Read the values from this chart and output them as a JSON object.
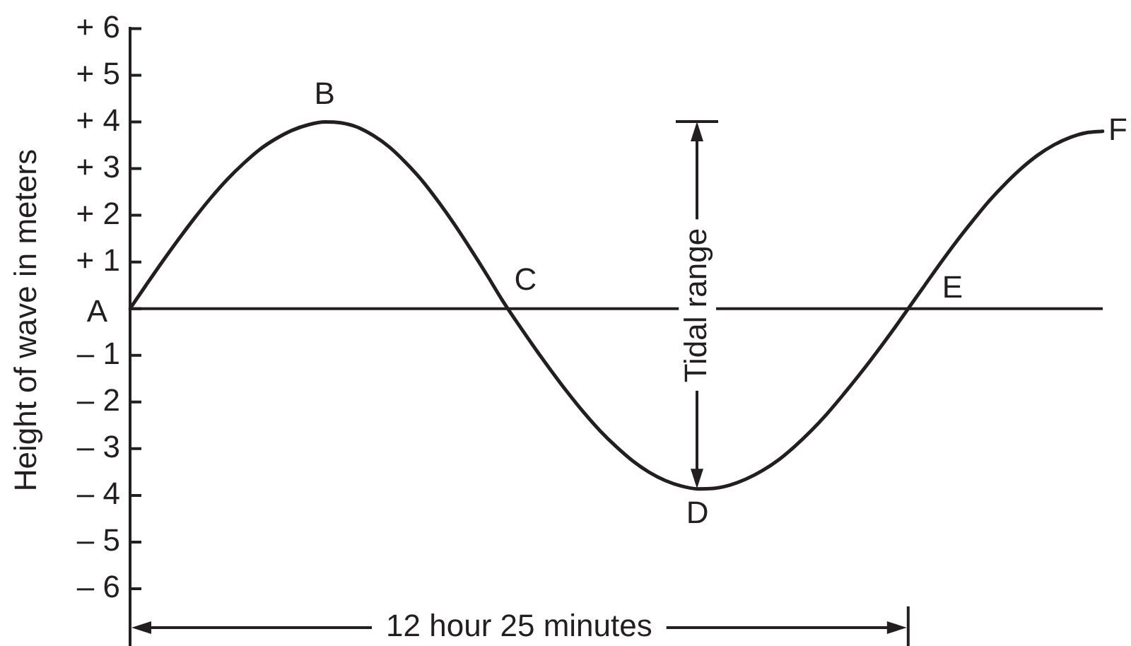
{
  "chart_data": {
    "type": "line",
    "ylabel": "Height of wave in meters",
    "categories": [
      null,
      null,
      null,
      null,
      null,
      null,
      null,
      null,
      null,
      null,
      null,
      null,
      null,
      null,
      null,
      null,
      null,
      null,
      null,
      null,
      null,
      null,
      null,
      null,
      null,
      null,
      null,
      null,
      null,
      null,
      null,
      null,
      null,
      null,
      null,
      null,
      null,
      null,
      null,
      null,
      null,
      null,
      null,
      null,
      null,
      null,
      null,
      null,
      null,
      null,
      null,
      null,
      null,
      null,
      null,
      null,
      null,
      null,
      null,
      null,
      null
    ],
    "series": [
      {
        "color": "#231f20",
        "values": [
          0,
          0.51,
          1.01,
          1.49,
          1.95,
          2.38,
          2.77,
          3.11,
          3.41,
          3.64,
          3.82,
          3.94,
          4.0,
          3.98,
          3.89,
          3.71,
          3.46,
          3.13,
          2.75,
          2.3,
          1.81,
          1.28,
          0.73,
          0.16,
          -0.36,
          -0.86,
          -1.34,
          -1.8,
          -2.23,
          -2.62,
          -2.96,
          -3.26,
          -3.5,
          -3.68,
          -3.8,
          -3.86,
          -3.85,
          -3.78,
          -3.65,
          -3.47,
          -3.24,
          -2.95,
          -2.62,
          -2.25,
          -1.84,
          -1.41,
          -0.96,
          -0.49,
          0,
          0.49,
          0.98,
          1.45,
          1.89,
          2.31,
          2.68,
          3.01,
          3.29,
          3.51,
          3.67,
          3.77,
          3.8
        ],
        "value_labels": [
          "A",
          null,
          null,
          null,
          null,
          null,
          null,
          null,
          null,
          null,
          null,
          null,
          "B",
          null,
          null,
          null,
          null,
          null,
          null,
          null,
          null,
          null,
          null,
          "C",
          null,
          null,
          null,
          null,
          null,
          null,
          null,
          null,
          null,
          null,
          null,
          "D",
          null,
          null,
          null,
          null,
          null,
          null,
          null,
          null,
          null,
          null,
          null,
          null,
          "E",
          null,
          null,
          null,
          null,
          null,
          null,
          null,
          null,
          null,
          null,
          null,
          "F"
        ]
      }
    ],
    "ylim": [
      -6.5,
      6
    ],
    "yticks": [
      {
        "value": 6,
        "label": "+ 6"
      },
      {
        "value": 5,
        "label": "+ 5"
      },
      {
        "value": 4,
        "label": "+ 4"
      },
      {
        "value": 3,
        "label": "+ 3"
      },
      {
        "value": 2,
        "label": "+ 2"
      },
      {
        "value": 1,
        "label": "+ 1"
      },
      {
        "value": 0,
        "label": null
      },
      {
        "value": -1,
        "label": "– 1"
      },
      {
        "value": -2,
        "label": "– 2"
      },
      {
        "value": -3,
        "label": "– 3"
      },
      {
        "value": -4,
        "label": "– 4"
      },
      {
        "value": -5,
        "label": "– 5"
      },
      {
        "value": -6,
        "label": "– 6"
      }
    ],
    "ref_lines": [
      {
        "axis": "y",
        "value": 0,
        "color": "#231f20"
      }
    ],
    "annotations": [
      "Tidal range",
      "12 hour 25 minutes"
    ],
    "grid": false,
    "legend": false,
    "marker": "none",
    "line_style": "solid",
    "tick_labels": "y"
  }
}
